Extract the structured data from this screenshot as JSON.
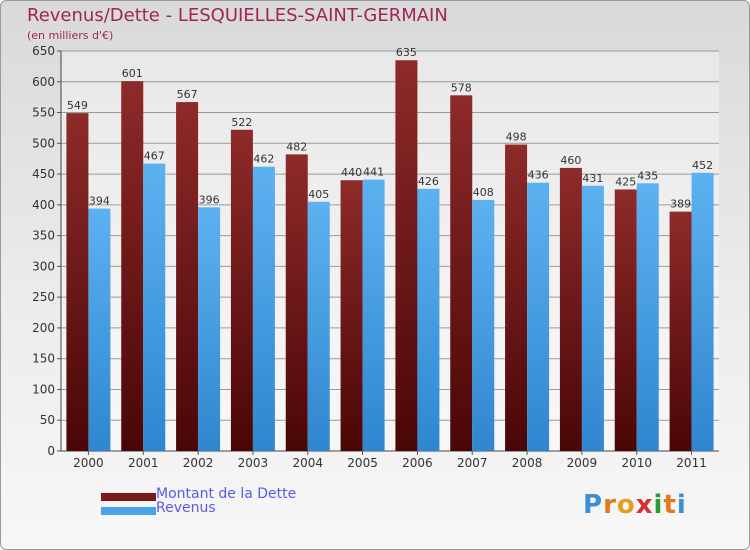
{
  "title": "Revenus/Dette - LESQUIELLES-SAINT-GERMAIN",
  "subtitle": "(en milliers d'€)",
  "chart_data": {
    "type": "bar",
    "categories": [
      "2000",
      "2001",
      "2002",
      "2003",
      "2004",
      "2005",
      "2006",
      "2007",
      "2008",
      "2009",
      "2010",
      "2011"
    ],
    "series": [
      {
        "name": "Montant de la Dette",
        "color": "#7a1a1a",
        "values": [
          549,
          601,
          567,
          522,
          482,
          440,
          635,
          578,
          498,
          460,
          425,
          389
        ]
      },
      {
        "name": "Revenus",
        "color": "#4aa3e8",
        "values": [
          394,
          467,
          396,
          462,
          405,
          441,
          426,
          408,
          436,
          431,
          435,
          452
        ]
      }
    ],
    "ylim": [
      0,
      650
    ],
    "yticks": [
      0,
      50,
      100,
      150,
      200,
      250,
      300,
      350,
      400,
      450,
      500,
      550,
      600,
      650
    ],
    "grid": true,
    "legend_position": "bottom-left"
  },
  "legend": {
    "dette_label": "Montant de la Dette",
    "revenus_label": "Revenus"
  },
  "logo": {
    "letters": [
      "P",
      "r",
      "o",
      "x",
      "i",
      "t",
      "i"
    ],
    "colors": [
      "#3a8fd6",
      "#e07a1a",
      "#e0a020",
      "#d83030",
      "#2a9a3a",
      "#e07a1a",
      "#3a8fd6"
    ]
  }
}
